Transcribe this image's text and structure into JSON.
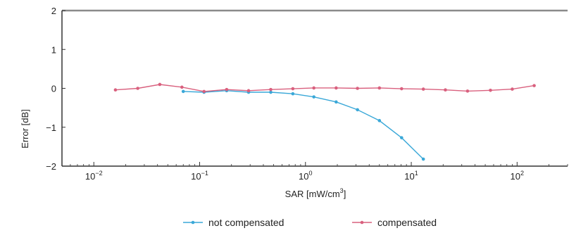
{
  "chart_data": {
    "type": "line",
    "xlabel": "SAR [mW/cm³]",
    "xlabel_parts": {
      "base": "SAR [mW/cm",
      "sup": "3",
      "end": "]"
    },
    "ylabel": "Error [dB]",
    "xscale": "log",
    "xlim": [
      0.005,
      300
    ],
    "ylim": [
      -2,
      2
    ],
    "x_ticks": [
      {
        "value": 0.01,
        "base": "10",
        "exp": "−2"
      },
      {
        "value": 0.1,
        "base": "10",
        "exp": "−1"
      },
      {
        "value": 1,
        "base": "10",
        "exp": "0"
      },
      {
        "value": 10,
        "base": "10",
        "exp": "1"
      },
      {
        "value": 100,
        "base": "10",
        "exp": "2"
      }
    ],
    "y_ticks": [
      {
        "value": -2,
        "label": "−2"
      },
      {
        "value": -1,
        "label": "−1"
      },
      {
        "value": 0,
        "label": "0"
      },
      {
        "value": 1,
        "label": "1"
      },
      {
        "value": 2,
        "label": "2"
      }
    ],
    "grid": false,
    "legend_position": "bottom",
    "series": [
      {
        "name": "not compensated",
        "color": "#3aa8d8",
        "x": [
          0.07,
          0.11,
          0.18,
          0.29,
          0.47,
          0.76,
          1.2,
          1.95,
          3.1,
          5.0,
          8.1,
          13.0
        ],
        "y": [
          -0.08,
          -0.1,
          -0.06,
          -0.1,
          -0.1,
          -0.14,
          -0.22,
          -0.35,
          -0.55,
          -0.83,
          -1.27,
          -1.82
        ]
      },
      {
        "name": "compensated",
        "color": "#d9607e",
        "x": [
          0.016,
          0.026,
          0.042,
          0.068,
          0.11,
          0.18,
          0.29,
          0.47,
          0.76,
          1.2,
          1.95,
          3.1,
          5.0,
          8.1,
          13.0,
          21.0,
          34.0,
          56.0,
          90.0,
          145.0
        ],
        "y": [
          -0.04,
          0.0,
          0.1,
          0.03,
          -0.08,
          -0.03,
          -0.06,
          -0.03,
          -0.01,
          0.01,
          0.01,
          0.0,
          0.01,
          -0.01,
          -0.02,
          -0.04,
          -0.07,
          -0.05,
          -0.02,
          0.07
        ]
      }
    ]
  }
}
